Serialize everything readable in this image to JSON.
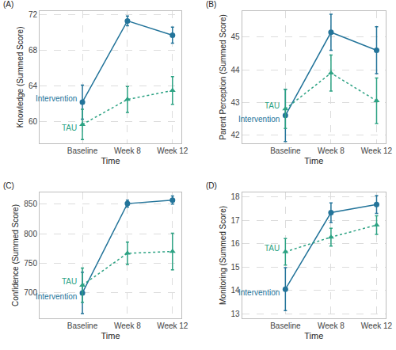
{
  "chart_data": [
    {
      "type": "line",
      "title": "(A)",
      "x_label": "Time",
      "y_label": "Knowledge (Summed Score)",
      "categories": [
        "Baseline",
        "Week 8",
        "Week 12"
      ],
      "ylim": [
        57.6,
        72.4
      ],
      "yticks": [
        60,
        64,
        68,
        72
      ],
      "grid": true,
      "series": [
        {
          "name": "Intervention",
          "color": "#23749a",
          "marker": "circle",
          "line_style": "solid",
          "values": [
            62.2,
            71.3,
            69.7
          ],
          "errors": [
            1.9,
            0.55,
            0.9
          ]
        },
        {
          "name": "TAU",
          "color": "#2ca283",
          "marker": "triangle-up",
          "line_style": "dot",
          "values": [
            59.7,
            62.5,
            63.5
          ],
          "errors": [
            1.7,
            1.45,
            1.55
          ]
        }
      ]
    },
    {
      "type": "line",
      "title": "(B)",
      "x_label": "Time",
      "y_label": "Parent Perception (Summed Score)",
      "categories": [
        "Baseline",
        "Week 8",
        "Week 12"
      ],
      "ylim": [
        41.75,
        45.8
      ],
      "yticks": [
        42,
        43,
        44,
        45
      ],
      "grid": true,
      "series": [
        {
          "name": "Intervention",
          "color": "#23749a",
          "marker": "circle",
          "line_style": "solid",
          "values": [
            42.6,
            45.15,
            44.6
          ],
          "errors": [
            0.8,
            0.55,
            0.72
          ]
        },
        {
          "name": "TAU",
          "color": "#2ca283",
          "marker": "triangle-up",
          "line_style": "dot",
          "values": [
            42.8,
            43.9,
            43.05
          ],
          "errors": [
            0.6,
            0.55,
            0.7
          ]
        }
      ]
    },
    {
      "type": "line",
      "title": "(C)",
      "x_label": "Time",
      "y_label": "Confidence (Summed Score)",
      "categories": [
        "Baseline",
        "Week 8",
        "Week 12"
      ],
      "ylim": [
        657,
        870
      ],
      "yticks": [
        700,
        750,
        800,
        850
      ],
      "grid": true,
      "series": [
        {
          "name": "Intervention",
          "color": "#23749a",
          "marker": "circle",
          "line_style": "solid",
          "values": [
            700,
            851,
            857
          ],
          "errors": [
            35,
            6,
            7
          ]
        },
        {
          "name": "TAU",
          "color": "#2ca283",
          "marker": "triangle-up",
          "line_style": "dot",
          "values": [
            713,
            767,
            770
          ],
          "errors": [
            29,
            19,
            31
          ]
        }
      ]
    },
    {
      "type": "line",
      "title": "(D)",
      "x_label": "Time",
      "y_label": "Monitoring (Summed Score)",
      "categories": [
        "Baseline",
        "Week 8",
        "Week 12"
      ],
      "ylim": [
        12.8,
        18.2
      ],
      "yticks": [
        13,
        14,
        15,
        16,
        17,
        18
      ],
      "grid": true,
      "series": [
        {
          "name": "Intervention",
          "color": "#23749a",
          "marker": "circle",
          "line_style": "solid",
          "values": [
            14.05,
            17.33,
            17.68
          ],
          "errors": [
            0.92,
            0.42,
            0.38
          ]
        },
        {
          "name": "TAU",
          "color": "#2ca283",
          "marker": "triangle-up",
          "line_style": "dot",
          "values": [
            15.65,
            16.28,
            16.8
          ],
          "errors": [
            0.57,
            0.38,
            0.4
          ]
        }
      ]
    }
  ]
}
